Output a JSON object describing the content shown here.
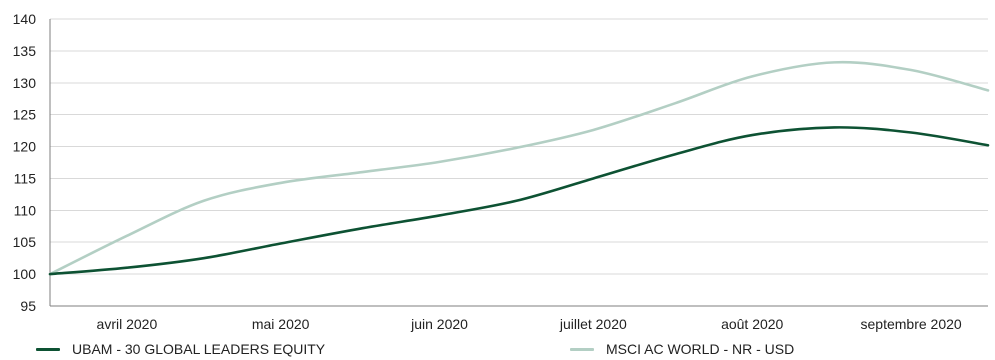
{
  "chart_data": {
    "type": "line",
    "x": [
      "2020-03-31",
      "2020-04-15",
      "2020-04-30",
      "2020-05-15",
      "2020-05-31",
      "2020-06-15",
      "2020-06-30",
      "2020-07-15",
      "2020-07-31",
      "2020-08-15",
      "2020-08-31",
      "2020-09-15",
      "2020-09-30"
    ],
    "series": [
      {
        "name": "UBAM - 30 GLOBAL LEADERS EQUITY",
        "color": "#0d5233",
        "values": [
          100,
          101,
          102.5,
          104.8,
          107.2,
          109.2,
          111.5,
          115,
          118.8,
          121.8,
          123,
          122.2,
          120.2
        ]
      },
      {
        "name": "MSCI AC WORLD - NR - USD",
        "color": "#b3cfc4",
        "values": [
          100,
          106,
          111.5,
          114.3,
          116,
          117.6,
          119.8,
          122.6,
          126.8,
          131,
          133.2,
          132,
          128.8
        ]
      }
    ],
    "title": "",
    "xlabel": "",
    "ylabel": "",
    "ylim": [
      95,
      140
    ],
    "yticks": [
      95,
      100,
      105,
      110,
      115,
      120,
      125,
      130,
      135,
      140
    ],
    "xtick_labels": [
      {
        "label": "avril 2020",
        "date": "2020-04-15"
      },
      {
        "label": "mai 2020",
        "date": "2020-05-15"
      },
      {
        "label": "juin 2020",
        "date": "2020-06-15"
      },
      {
        "label": "juillet 2020",
        "date": "2020-07-15"
      },
      {
        "label": "août 2020",
        "date": "2020-08-15"
      },
      {
        "label": "septembre 2020",
        "date": "2020-09-15"
      }
    ],
    "grid": "horizontal",
    "legend_position": "bottom",
    "gridline_color": "#d9d9d9",
    "axis_color": "#7f7f7f"
  }
}
